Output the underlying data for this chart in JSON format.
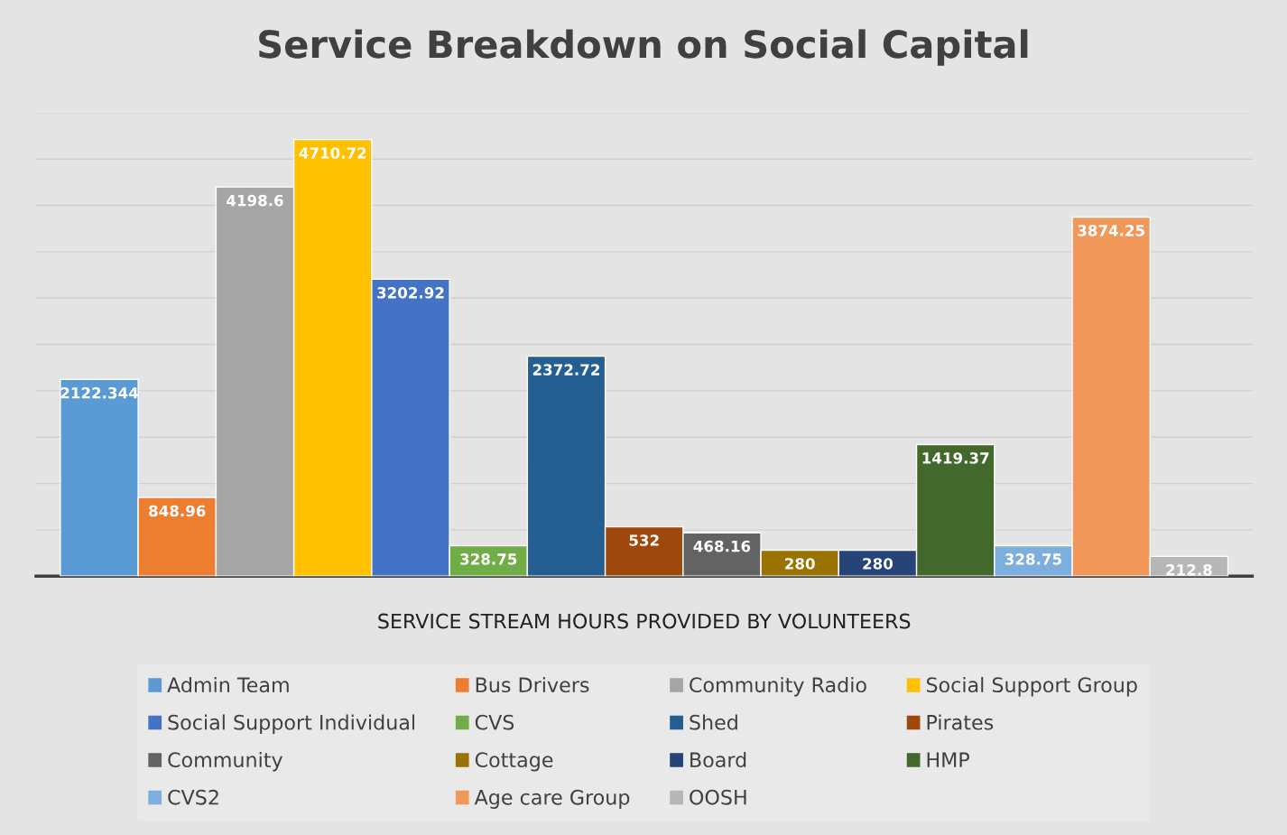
{
  "chart_data": {
    "type": "bar",
    "title": "Service Breakdown on Social Capital",
    "xlabel": "SERVICE STREAM HOURS PROVIDED BY VOLUNTEERS",
    "categories": [
      null
    ],
    "series": [
      {
        "name": "Admin Team",
        "color": "#5b9bd5",
        "values": [
          2122.344
        ]
      },
      {
        "name": "Bus Drivers",
        "color": "#ed7d31",
        "values": [
          848.96
        ]
      },
      {
        "name": "Community Radio",
        "color": "#a5a5a5",
        "values": [
          4198.6
        ]
      },
      {
        "name": "Social Support Group",
        "color": "#ffc000",
        "values": [
          4710.72
        ]
      },
      {
        "name": "Social Support Individual",
        "color": "#4472c4",
        "values": [
          3202.92
        ]
      },
      {
        "name": "CVS",
        "color": "#70ad47",
        "values": [
          328.75
        ]
      },
      {
        "name": "Shed",
        "color": "#255e91",
        "values": [
          2372.72
        ]
      },
      {
        "name": "Pirates",
        "color": "#9e480e",
        "values": [
          532
        ]
      },
      {
        "name": "Community",
        "color": "#636363",
        "values": [
          468.16
        ]
      },
      {
        "name": "Cottage",
        "color": "#997300",
        "values": [
          280
        ]
      },
      {
        "name": "Board",
        "color": "#264478",
        "values": [
          280
        ]
      },
      {
        "name": "HMP",
        "color": "#43682b",
        "values": [
          1419.37
        ]
      },
      {
        "name": "CVS2",
        "color": "#7cafdd",
        "values": [
          328.75
        ]
      },
      {
        "name": "Age care Group",
        "color": "#f1975a",
        "values": [
          3874.25
        ]
      },
      {
        "name": "OOSH",
        "color": "#b7b7b7",
        "values": [
          212.8
        ]
      }
    ],
    "ylim": [
      0,
      5000
    ],
    "yticks": [
      {
        "value": 0,
        "label": null
      },
      {
        "value": 500,
        "label": null
      },
      {
        "value": 1000,
        "label": null
      },
      {
        "value": 1500,
        "label": null
      },
      {
        "value": 2000,
        "label": null
      },
      {
        "value": 2500,
        "label": null
      },
      {
        "value": 3000,
        "label": null
      },
      {
        "value": 3500,
        "label": null
      },
      {
        "value": 4000,
        "label": null
      },
      {
        "value": 4500,
        "label": null
      },
      {
        "value": 5000,
        "label": null
      }
    ],
    "grid": "y",
    "data_labels": true,
    "legend": "bottom"
  }
}
